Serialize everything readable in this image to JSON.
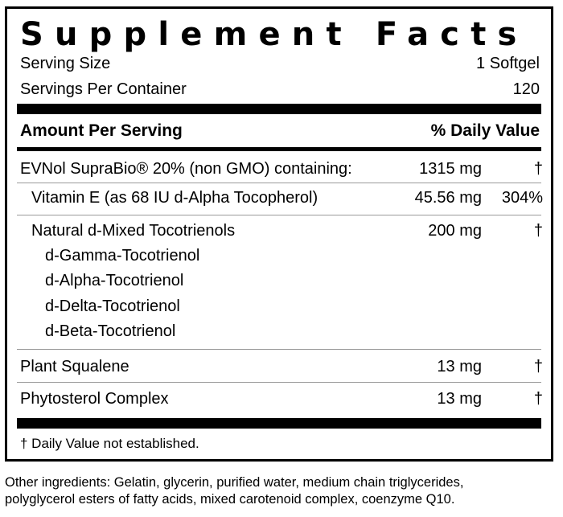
{
  "panel": {
    "title": "Supplement Facts",
    "serving_size_label": "Serving Size",
    "serving_size_value": "1 Softgel",
    "servings_label": "Servings Per Container",
    "servings_value": "120",
    "amount_header": "Amount Per Serving",
    "dv_header": "% Daily Value",
    "ingredients": [
      {
        "name": "EVNol SupraBio® 20% (non GMO) containing:",
        "amount": "1315 mg",
        "dv": "†"
      },
      {
        "name": "Vitamin E (as 68 IU d-Alpha Tocopherol)",
        "amount": "45.56 mg",
        "dv": "304%"
      },
      {
        "name": "Natural d-Mixed Tocotrienols",
        "amount": "200 mg",
        "dv": "†",
        "sub_items": [
          "d-Gamma-Tocotrienol",
          "d-Alpha-Tocotrienol",
          "d-Delta-Tocotrienol",
          "d-Beta-Tocotrienol"
        ]
      },
      {
        "name": "Plant Squalene",
        "amount": "13 mg",
        "dv": "†"
      },
      {
        "name": "Phytosterol Complex",
        "amount": "13 mg",
        "dv": "†"
      }
    ],
    "footnote": "† Daily Value not established."
  },
  "other_ingredients": {
    "line1": "Other ingredients: Gelatin, glycerin, purified water, medium chain triglycerides,",
    "line2": "polyglycerol esters of fatty acids, mixed carotenoid complex, coenzyme Q10."
  }
}
